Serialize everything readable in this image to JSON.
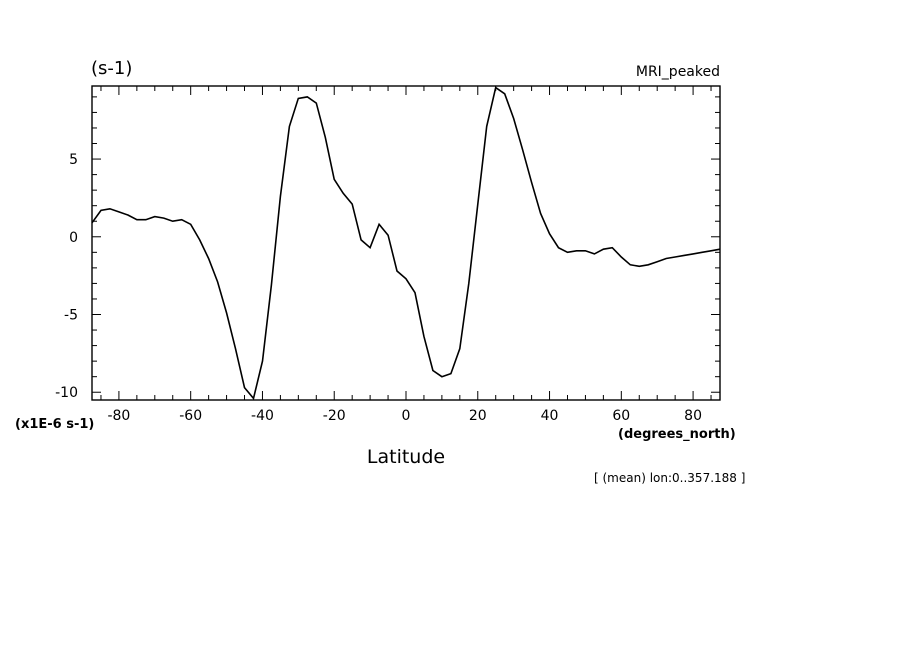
{
  "chart_data": {
    "type": "line",
    "units_label": "(s-1)",
    "dataset_label": "MRI_peaked",
    "scale_label": "(x1E-6 s-1)",
    "xunits_label": "(degrees_north)",
    "xlabel": "Latitude",
    "subtitle": "[ (mean) lon:0..357.188 ]",
    "xlim": [
      -87.5,
      87.5
    ],
    "ylim": [
      -10.5,
      9.7
    ],
    "xticks": [
      -80,
      -60,
      -40,
      -20,
      0,
      20,
      40,
      60,
      80
    ],
    "yticks": [
      -10,
      -5,
      0,
      5
    ],
    "xtick_labels": [
      "-80",
      "-60",
      "-40",
      "-20",
      "0",
      "20",
      "40",
      "60",
      "80"
    ],
    "ytick_labels": [
      "-10",
      "-5",
      "0",
      "5"
    ],
    "x": [
      -87.5,
      -85,
      -82.5,
      -80,
      -77.5,
      -75,
      -72.5,
      -70,
      -67.5,
      -65,
      -62.5,
      -60,
      -57.5,
      -55,
      -52.5,
      -50,
      -47.5,
      -45,
      -42.5,
      -40,
      -37.5,
      -35,
      -32.5,
      -30,
      -27.5,
      -25,
      -22.5,
      -20,
      -17.5,
      -15,
      -12.5,
      -10,
      -7.5,
      -5,
      -2.5,
      0,
      2.5,
      5,
      7.5,
      10,
      12.5,
      15,
      17.5,
      20,
      22.5,
      25,
      27.5,
      30,
      32.5,
      35,
      37.5,
      40,
      42.5,
      45,
      47.5,
      50,
      52.5,
      55,
      57.5,
      60,
      62.5,
      65,
      67.5,
      70,
      72.5,
      75,
      77.5,
      80,
      82.5,
      85,
      87.5
    ],
    "y": [
      0.9,
      1.7,
      1.8,
      1.6,
      1.4,
      1.1,
      1.1,
      1.3,
      1.2,
      1.0,
      1.1,
      0.8,
      -0.2,
      -1.4,
      -2.9,
      -4.9,
      -7.2,
      -9.7,
      -10.4,
      -8.0,
      -3.1,
      2.6,
      7.1,
      8.9,
      9.0,
      8.6,
      6.4,
      3.7,
      2.8,
      2.1,
      -0.2,
      -0.7,
      0.8,
      0.1,
      -2.2,
      -2.7,
      -3.6,
      -6.4,
      -8.6,
      -9.0,
      -8.8,
      -7.2,
      -3.0,
      2.1,
      7.1,
      9.6,
      9.2,
      7.6,
      5.6,
      3.5,
      1.5,
      0.2,
      -0.7,
      -1.0,
      -0.9,
      -0.9,
      -1.1,
      -0.8,
      -0.7,
      -1.3,
      -1.8,
      -1.9,
      -1.8,
      -1.6,
      -1.4,
      -1.3,
      -1.2,
      -1.1,
      -1.0,
      -0.9,
      -0.8
    ]
  }
}
